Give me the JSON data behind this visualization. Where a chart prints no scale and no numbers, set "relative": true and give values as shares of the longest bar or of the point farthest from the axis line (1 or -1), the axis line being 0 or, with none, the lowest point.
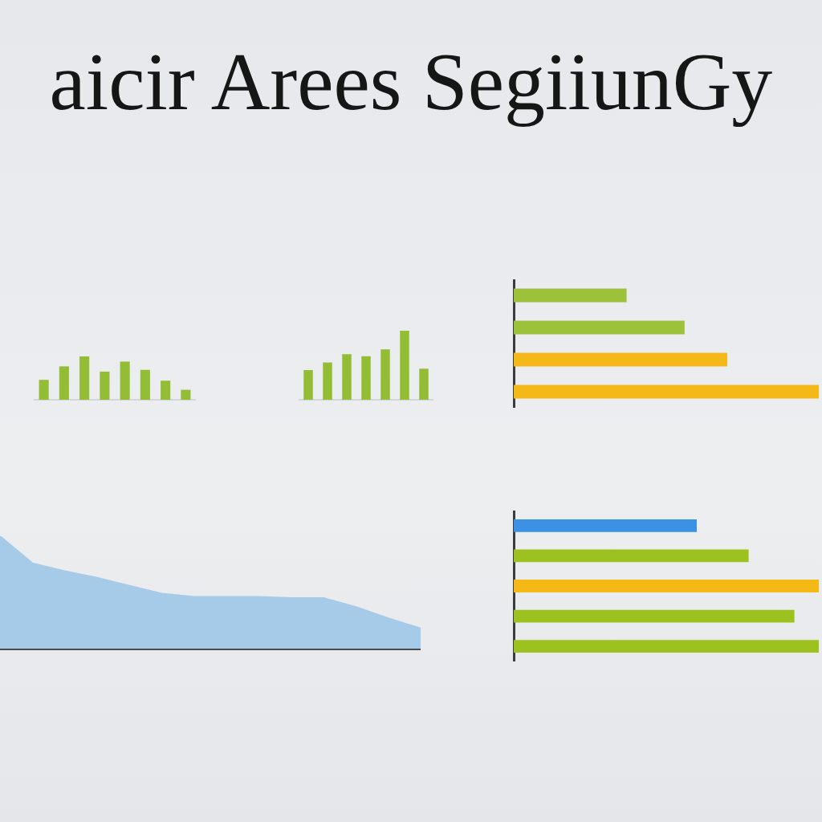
{
  "chart_data": [
    {
      "type": "bar",
      "title": "aicir Arees SegiiunGy",
      "relative": true,
      "color": "#93bd34",
      "categories": [
        null,
        null,
        null,
        null,
        null,
        null,
        null,
        null
      ],
      "values": [
        0.46,
        0.77,
        1,
        0.65,
        0.88,
        0.69,
        0.44,
        0.23
      ]
    },
    {
      "type": "bar",
      "relative": true,
      "color": "#93bd34",
      "categories": [
        null,
        null,
        null,
        null,
        null,
        null,
        null
      ],
      "values": [
        0.43,
        0.54,
        0.66,
        0.63,
        0.73,
        1,
        0.45
      ]
    },
    {
      "type": "bar",
      "orientation": "horizontal",
      "relative": true,
      "categories": [
        null,
        null,
        null,
        null
      ],
      "values": [
        0.37,
        0.56,
        0.7,
        1
      ],
      "colors": [
        "#9cc23c",
        "#9cc23c",
        "#f4b919",
        "#f4b919"
      ]
    },
    {
      "type": "area",
      "relative": true,
      "color": "#a6cbe8",
      "categories": [
        null,
        null,
        null,
        null,
        null,
        null,
        null,
        null,
        null,
        null,
        null,
        null,
        null,
        null
      ],
      "values": [
        1,
        0.76,
        0.69,
        0.63,
        0.56,
        0.49,
        0.46,
        0.46,
        0.46,
        0.45,
        0.45,
        0.37,
        0.27,
        0.18
      ]
    },
    {
      "type": "bar",
      "orientation": "horizontal",
      "relative": true,
      "categories": [
        null,
        null,
        null,
        null,
        null
      ],
      "values": [
        0.6,
        0.77,
        1,
        0.92,
        1
      ],
      "colors": [
        "#3b91e3",
        "#9dc21f",
        "#f4b914",
        "#9dc21f",
        "#9dc21f"
      ]
    }
  ]
}
